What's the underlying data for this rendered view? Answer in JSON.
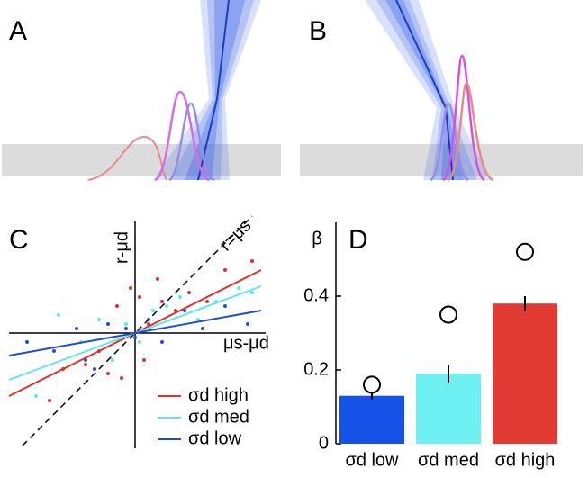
{
  "panel_labels": [
    "A",
    "B",
    "C",
    "D"
  ],
  "chart_data": [
    {
      "type": "scatter",
      "x_label": "μs-μd",
      "y_label": "r-μd",
      "xlim": [
        -1.4,
        1.4
      ],
      "ylim": [
        -1.3,
        1.3
      ],
      "legend": "lower right",
      "reference_line": {
        "label": "r=μs",
        "x": [
          -1.25,
          1.3
        ],
        "values": [
          -1.25,
          1.3
        ]
      },
      "series": [
        {
          "name": "σd high",
          "color": "#e0312b",
          "line_x": [
            -1.4,
            1.4
          ],
          "line_values": [
            -0.7,
            0.7
          ],
          "x": [
            -0.95,
            -0.8,
            -0.55,
            -0.4,
            -0.3,
            -0.15,
            -0.05,
            0.05,
            0.15,
            0.3,
            0.45,
            0.6,
            0.8,
            1.0,
            1.3,
            -0.2,
            0.1,
            0.25
          ],
          "values": [
            -0.75,
            -0.4,
            -0.35,
            -0.2,
            -0.45,
            -0.5,
            0.5,
            0.4,
            0.1,
            0.35,
            0.25,
            0.45,
            0.35,
            0.7,
            0.8,
            0.3,
            -0.3,
            0.6
          ]
        },
        {
          "name": "σd med",
          "color": "#5ee8ee",
          "line_x": [
            -1.4,
            1.4
          ],
          "line_values": [
            -0.52,
            0.52
          ],
          "x": [
            -1.1,
            -0.85,
            -0.6,
            -0.4,
            -0.25,
            -0.1,
            0.05,
            0.2,
            0.35,
            0.5,
            0.7,
            0.9,
            1.15,
            1.3
          ],
          "values": [
            -0.7,
            0.2,
            -0.1,
            0.15,
            -0.3,
            0.1,
            -0.1,
            0.25,
            0.3,
            0.4,
            0.15,
            0.35,
            0.5,
            0.45
          ]
        },
        {
          "name": "σd low",
          "color": "#1d4ed8",
          "line_x": [
            -1.4,
            1.4
          ],
          "line_values": [
            -0.25,
            0.25
          ],
          "x": [
            -1.2,
            -0.9,
            -0.65,
            -0.45,
            -0.3,
            -0.1,
            0.0,
            0.15,
            0.3,
            0.55,
            0.75,
            1.0,
            1.25,
            -0.55
          ],
          "values": [
            -0.1,
            -0.2,
            0.05,
            -0.4,
            0.1,
            0.05,
            -0.05,
            0.15,
            -0.1,
            0.25,
            0.05,
            0.3,
            0.1,
            -0.3
          ]
        }
      ]
    },
    {
      "type": "bar",
      "y_label": "β",
      "categories": [
        "σd low",
        "σd med",
        "σd high"
      ],
      "values": [
        0.13,
        0.19,
        0.38
      ],
      "errors": [
        0.01,
        0.025,
        0.02
      ],
      "predictions": [
        0.16,
        0.35,
        0.52
      ],
      "colors": [
        "#1652e8",
        "#6ff1f4",
        "#e23b34"
      ],
      "ylim": [
        0,
        0.6
      ],
      "yticks": [
        0,
        0.2,
        0.4
      ]
    }
  ]
}
